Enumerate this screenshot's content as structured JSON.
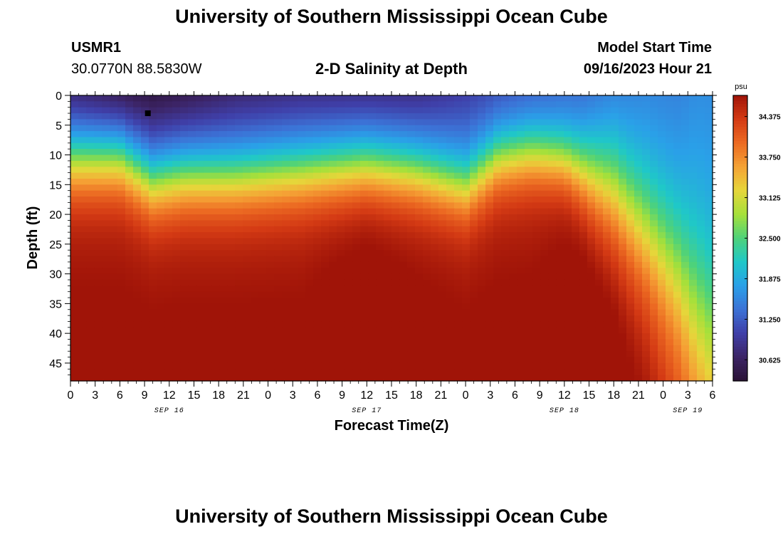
{
  "header": {
    "title": "University of Southern Mississippi Ocean Cube",
    "station_id": "USMR1",
    "coordinates": "30.0770N  88.5830W",
    "subtitle": "2-D Salinity at Depth",
    "model_start_label": "Model Start Time",
    "model_start_value": "09/16/2023 Hour 21"
  },
  "footer": {
    "title": "University of Southern Mississippi Ocean Cube"
  },
  "colors": {
    "colormap": [
      "#2a1235",
      "#3c2466",
      "#3f3fa8",
      "#3c72d6",
      "#2aa0e8",
      "#1fc8c8",
      "#4ed27a",
      "#a6e03a",
      "#e6d63a",
      "#f5a235",
      "#ec6a22",
      "#d43a14",
      "#a01408"
    ]
  },
  "chart_data": {
    "type": "heatmap",
    "ylabel": "Depth (ft)",
    "xlabel": "Forecast Time(Z)",
    "ylim": [
      0,
      48
    ],
    "y_ticks": [
      0,
      5,
      10,
      15,
      20,
      25,
      30,
      35,
      40,
      45
    ],
    "x_range_hours": [
      0,
      78
    ],
    "x_tick_labels": [
      "0",
      "3",
      "6",
      "9",
      "12",
      "15",
      "18",
      "21",
      "0",
      "3",
      "6",
      "9",
      "12",
      "15",
      "18",
      "21",
      "0",
      "3",
      "6",
      "9",
      "12",
      "15",
      "18",
      "21",
      "0",
      "3",
      "6"
    ],
    "date_labels": [
      {
        "text": "SEP 16",
        "hour": 12
      },
      {
        "text": "SEP 17",
        "hour": 36
      },
      {
        "text": "SEP 18",
        "hour": 60
      },
      {
        "text": "SEP 19",
        "hour": 75
      }
    ],
    "colorbar": {
      "unit": "psu",
      "min": 30.3,
      "max": 34.7,
      "tick_labels": [
        "34.375",
        "33.750",
        "33.125",
        "32.500",
        "31.875",
        "31.250",
        "30.625"
      ]
    },
    "marker": {
      "hour": 9.4,
      "depth": 3
    },
    "profiles": [
      {
        "hour": 0,
        "top": 30.7,
        "half": 31.7,
        "midD": 12,
        "width": 3.5,
        "bottom": 34.6
      },
      {
        "hour": 6,
        "top": 30.5,
        "half": 31.7,
        "midD": 12,
        "width": 3.5,
        "bottom": 34.6
      },
      {
        "hour": 10,
        "top": 30.4,
        "half": 31.8,
        "midD": 16,
        "width": 3.5,
        "bottom": 34.6
      },
      {
        "hour": 14,
        "top": 30.5,
        "half": 31.8,
        "midD": 15,
        "width": 3.5,
        "bottom": 34.6
      },
      {
        "hour": 20,
        "top": 30.7,
        "half": 31.8,
        "midD": 15,
        "width": 3.5,
        "bottom": 34.6
      },
      {
        "hour": 28,
        "top": 30.8,
        "half": 31.8,
        "midD": 14,
        "width": 3.5,
        "bottom": 34.6
      },
      {
        "hour": 36,
        "top": 30.8,
        "half": 31.8,
        "midD": 13,
        "width": 3.5,
        "bottom": 34.75
      },
      {
        "hour": 42,
        "top": 30.8,
        "half": 31.8,
        "midD": 14,
        "width": 3.5,
        "bottom": 34.65
      },
      {
        "hour": 48,
        "top": 31.0,
        "half": 31.7,
        "midD": 16,
        "width": 3.5,
        "bottom": 34.6
      },
      {
        "hour": 52,
        "top": 31.1,
        "half": 31.5,
        "midD": 11,
        "width": 3.5,
        "bottom": 34.6
      },
      {
        "hour": 56,
        "top": 31.2,
        "half": 31.5,
        "midD": 10,
        "width": 3.5,
        "bottom": 34.6
      },
      {
        "hour": 60,
        "top": 31.3,
        "half": 31.6,
        "midD": 11,
        "width": 3.5,
        "bottom": 34.7
      },
      {
        "hour": 62,
        "top": 31.3,
        "half": 31.7,
        "midD": 13,
        "width": 4,
        "bottom": 34.75
      },
      {
        "hour": 66,
        "top": 31.4,
        "half": 31.8,
        "midD": 17,
        "width": 6,
        "bottom": 34.75
      },
      {
        "hour": 70,
        "top": 31.5,
        "half": 31.8,
        "midD": 24,
        "width": 7,
        "bottom": 34.6
      },
      {
        "hour": 74,
        "top": 31.5,
        "half": 31.9,
        "midD": 32,
        "width": 8,
        "bottom": 34.3
      },
      {
        "hour": 76,
        "top": 31.6,
        "half": 32.0,
        "midD": 38,
        "width": 9,
        "bottom": 34.1
      },
      {
        "hour": 78,
        "top": 31.6,
        "half": 32.0,
        "midD": 42,
        "width": 9,
        "bottom": 33.9
      }
    ]
  }
}
